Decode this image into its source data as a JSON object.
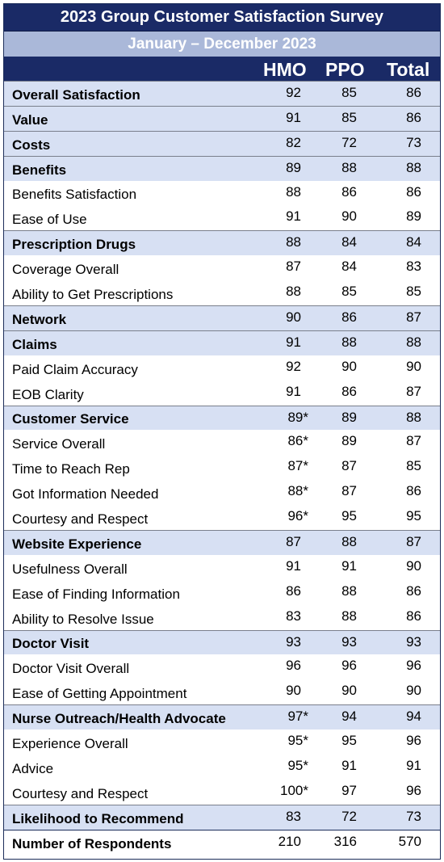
{
  "title": "2023 Group Customer Satisfaction Survey",
  "subtitle": "January – December 2023",
  "columns": [
    "HMO",
    "PPO",
    "Total"
  ],
  "rows": [
    {
      "label": "Overall Satisfaction",
      "type": "category",
      "hmo": "92",
      "ppo": "85",
      "total": "86"
    },
    {
      "label": "Value",
      "type": "category",
      "hmo": "91",
      "ppo": "85",
      "total": "86"
    },
    {
      "label": "Costs",
      "type": "category",
      "hmo": "82",
      "ppo": "72",
      "total": "73"
    },
    {
      "label": "Benefits",
      "type": "category",
      "hmo": "89",
      "ppo": "88",
      "total": "88"
    },
    {
      "label": "Benefits Satisfaction",
      "type": "item",
      "hmo": "88",
      "ppo": "86",
      "total": "86"
    },
    {
      "label": "Ease of Use",
      "type": "item",
      "hmo": "91",
      "ppo": "90",
      "total": "89"
    },
    {
      "label": "Prescription Drugs",
      "type": "category",
      "hmo": "88",
      "ppo": "84",
      "total": "84"
    },
    {
      "label": "Coverage Overall",
      "type": "item",
      "hmo": "87",
      "ppo": "84",
      "total": "83"
    },
    {
      "label": "Ability to Get Prescriptions",
      "type": "item",
      "hmo": "88",
      "ppo": "85",
      "total": "85"
    },
    {
      "label": "Network",
      "type": "category",
      "hmo": "90",
      "ppo": "86",
      "total": "87"
    },
    {
      "label": "Claims",
      "type": "category",
      "hmo": "91",
      "ppo": "88",
      "total": "88"
    },
    {
      "label": "Paid Claim Accuracy",
      "type": "item",
      "hmo": "92",
      "ppo": "90",
      "total": "90"
    },
    {
      "label": "EOB Clarity",
      "type": "item",
      "hmo": "91",
      "ppo": "86",
      "total": "87"
    },
    {
      "label": "Customer Service",
      "type": "category",
      "hmo": "89*",
      "ppo": "89",
      "total": "88"
    },
    {
      "label": "Service Overall",
      "type": "item",
      "hmo": "86*",
      "ppo": "89",
      "total": "87"
    },
    {
      "label": "Time to Reach Rep",
      "type": "item",
      "hmo": "87*",
      "ppo": "87",
      "total": "85"
    },
    {
      "label": "Got Information Needed",
      "type": "item",
      "hmo": "88*",
      "ppo": "87",
      "total": "86"
    },
    {
      "label": "Courtesy and Respect",
      "type": "item",
      "hmo": "96*",
      "ppo": "95",
      "total": "95"
    },
    {
      "label": "Website Experience",
      "type": "category",
      "hmo": "87",
      "ppo": "88",
      "total": "87"
    },
    {
      "label": "Usefulness Overall",
      "type": "item",
      "hmo": "91",
      "ppo": "91",
      "total": "90"
    },
    {
      "label": "Ease of Finding Information",
      "type": "item",
      "hmo": "86",
      "ppo": "88",
      "total": "86"
    },
    {
      "label": "Ability to Resolve Issue",
      "type": "item",
      "hmo": "83",
      "ppo": "88",
      "total": "86"
    },
    {
      "label": "Doctor Visit",
      "type": "category",
      "hmo": "93",
      "ppo": "93",
      "total": "93"
    },
    {
      "label": "Doctor Visit Overall",
      "type": "item",
      "hmo": "96",
      "ppo": "96",
      "total": "96"
    },
    {
      "label": "Ease of Getting Appointment",
      "type": "item",
      "hmo": "90",
      "ppo": "90",
      "total": "90"
    },
    {
      "label": "Nurse Outreach/Health Advocate",
      "type": "category",
      "hmo": "97*",
      "ppo": "94",
      "total": "94"
    },
    {
      "label": "Experience Overall",
      "type": "item",
      "hmo": "95*",
      "ppo": "95",
      "total": "96"
    },
    {
      "label": "Advice",
      "type": "item",
      "hmo": "95*",
      "ppo": "91",
      "total": "91"
    },
    {
      "label": "Courtesy and Respect",
      "type": "item",
      "hmo": "100*",
      "ppo": "97",
      "total": "96"
    },
    {
      "label": "Likelihood to Recommend",
      "type": "category",
      "hmo": "83",
      "ppo": "72",
      "total": "73"
    },
    {
      "label": "Number of Respondents",
      "type": "respondents",
      "hmo": "210",
      "ppo": "316",
      "total": "570"
    }
  ],
  "colors": {
    "header": "#1a2a66",
    "subheader": "#aab8d9",
    "category_band": "#d7e0f3"
  }
}
